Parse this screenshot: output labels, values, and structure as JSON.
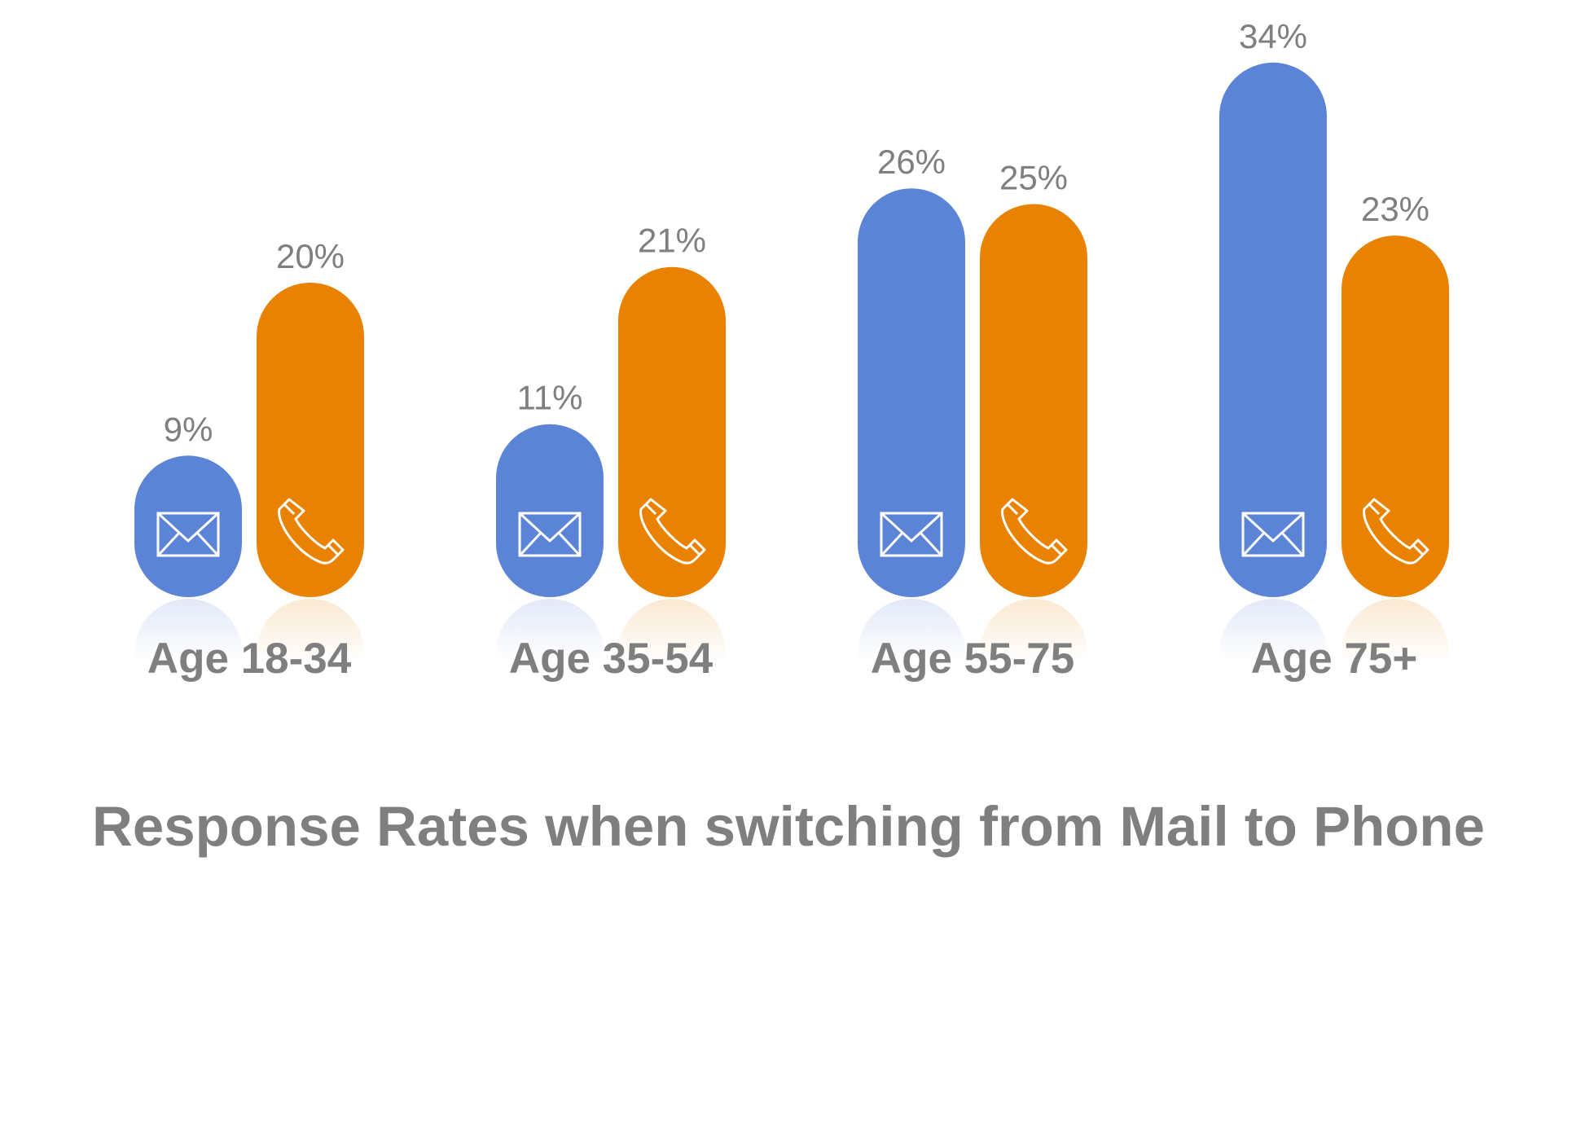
{
  "chart_data": {
    "type": "bar",
    "title": "Response Rates when switching from Mail to Phone",
    "categories": [
      "Age 18-34",
      "Age 35-54",
      "Age 55-75",
      "Age 75+"
    ],
    "series": [
      {
        "icon": "mail-icon",
        "color": "#5b84d6",
        "values": [
          9,
          11,
          26,
          34
        ],
        "labels": [
          "9%",
          "11%",
          "26%",
          "34%"
        ]
      },
      {
        "icon": "phone-icon",
        "color": "#e88200",
        "values": [
          20,
          21,
          25,
          23
        ],
        "labels": [
          "20%",
          "21%",
          "25%",
          "23%"
        ]
      }
    ],
    "ylim": [
      0,
      34
    ],
    "grid": false,
    "legend": "none"
  }
}
